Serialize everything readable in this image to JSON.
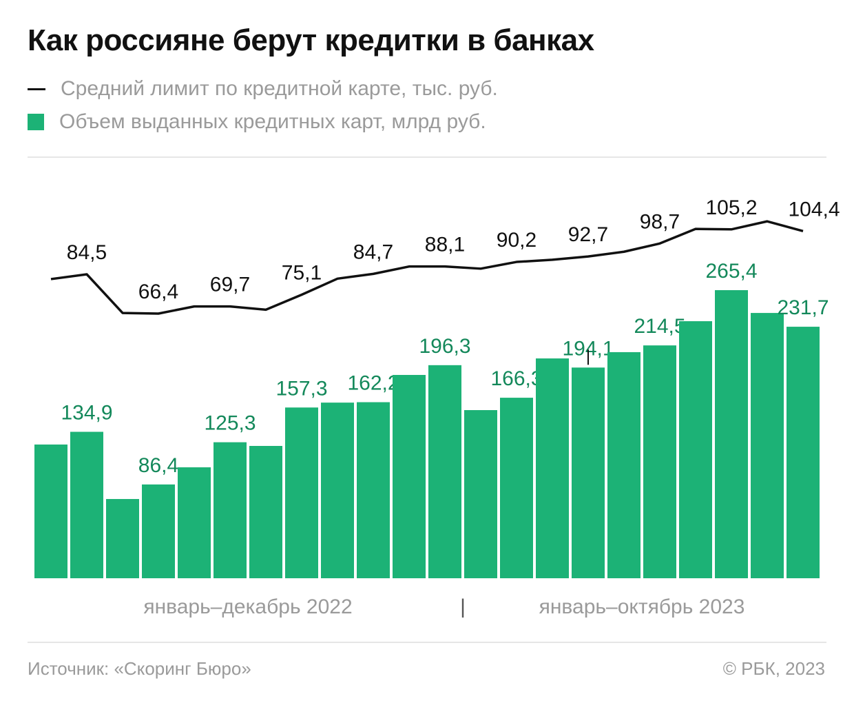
{
  "colors": {
    "bar": "#1cb276",
    "bar_label": "#13885a",
    "line": "#111111",
    "muted": "#9a9a9a"
  },
  "chart_data": {
    "type": "bar+line",
    "title": "Как россияне берут кредитки в банках",
    "legend": [
      {
        "name": "Средний лимит по кредитной карте, тыс. руб.",
        "type": "line"
      },
      {
        "name": "Объем выданных кредитных карт, млрд руб.",
        "type": "bar"
      }
    ],
    "legend_placement": "top-left",
    "x_groups": [
      {
        "label": "январь–декабрь 2022",
        "months": 12
      },
      {
        "label": "январь–октябрь 2023",
        "months": 10
      }
    ],
    "group_separator": "|",
    "series": [
      {
        "name": "Средний лимит по кредитной карте, тыс. руб.",
        "type": "line",
        "values": [
          82.3,
          84.5,
          66.7,
          66.4,
          69.7,
          69.7,
          68.2,
          75.1,
          82.5,
          84.7,
          88.1,
          88.1,
          87.1,
          90.2,
          91.2,
          92.7,
          94.9,
          98.7,
          105.4,
          105.2,
          108.9,
          104.4
        ],
        "labels": [
          null,
          "84,5",
          null,
          "66,4",
          null,
          "69,7",
          null,
          "75,1",
          null,
          "84,7",
          null,
          "88,1",
          null,
          "90,2",
          null,
          "92,7",
          null,
          "98,7",
          null,
          "105,2",
          null,
          "104,4"
        ]
      },
      {
        "name": "Объем выданных кредитных карт, млрд руб.",
        "type": "bar",
        "values": [
          123.2,
          134.9,
          73.0,
          86.4,
          102.2,
          125.3,
          121.9,
          157.3,
          161.8,
          162.2,
          187.3,
          196.3,
          154.9,
          166.3,
          202.5,
          194.1,
          208.3,
          214.5,
          236.8,
          265.4,
          244.4,
          231.7
        ],
        "labels": [
          null,
          "134,9",
          null,
          "86,4",
          null,
          "125,3",
          null,
          "157,3",
          null,
          "162,2",
          null,
          "196,3",
          null,
          "166,3",
          null,
          "194,1",
          null,
          "214,5",
          null,
          "265,4",
          null,
          "231,7"
        ]
      }
    ],
    "grid": false
  },
  "footer": {
    "source": "Источник: «Скоринг Бюро»",
    "copyright": "© РБК, 2023"
  }
}
